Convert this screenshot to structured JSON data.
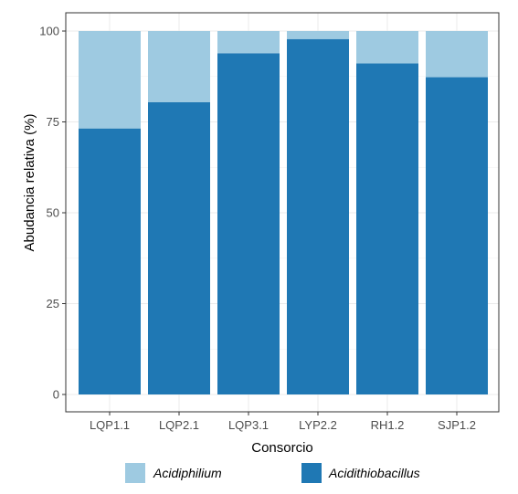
{
  "chart_data": {
    "type": "bar",
    "stacked": true,
    "title": "",
    "xlabel": "Consorcio",
    "ylabel": "Abudancia relativa (%)",
    "ylim": [
      0,
      100
    ],
    "yticks": [
      0,
      25,
      50,
      75,
      100
    ],
    "grid": true,
    "legend_position": "bottom",
    "categories": [
      "LQP1.1",
      "LQP2.1",
      "LQP3.1",
      "LYP2.2",
      "RH1.2",
      "SJP1.2"
    ],
    "series": [
      {
        "name": "Acidithiobacillus",
        "color": "#1f78b4",
        "values": [
          73.2,
          80.4,
          93.9,
          97.8,
          91.1,
          87.3
        ]
      },
      {
        "name": "Acidiphilium",
        "color": "#9ecae1",
        "values": [
          26.8,
          19.6,
          6.1,
          2.2,
          8.9,
          12.7
        ]
      }
    ],
    "legend_order": [
      "Acidiphilium",
      "Acidithiobacillus"
    ]
  }
}
